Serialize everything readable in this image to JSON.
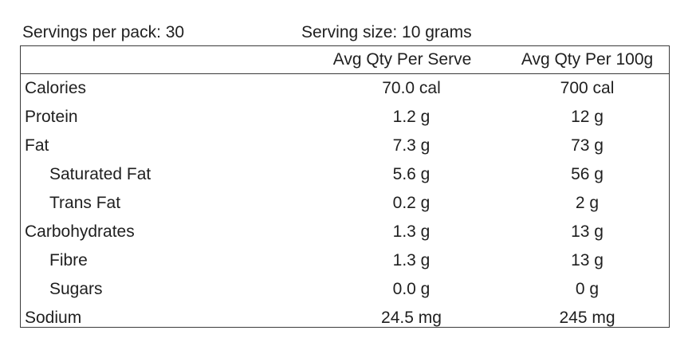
{
  "summary": {
    "servings_per_pack": "Servings per pack: 30",
    "serving_size": "Serving size: 10 grams"
  },
  "table": {
    "headers": {
      "per_serve": "Avg Qty Per Serve",
      "per_100g": "Avg Qty Per 100g"
    },
    "rows": [
      {
        "label": "Calories",
        "per_serve": "70.0 cal",
        "per_100g": "700 cal"
      },
      {
        "label": "Protein",
        "per_serve": "1.2 g",
        "per_100g": "12 g"
      },
      {
        "label": "Fat",
        "per_serve": "7.3 g",
        "per_100g": "73 g"
      },
      {
        "label": "Saturated Fat",
        "per_serve": "5.6 g",
        "per_100g": "56 g"
      },
      {
        "label": "Trans Fat",
        "per_serve": "0.2 g",
        "per_100g": "2 g"
      },
      {
        "label": "Carbohydrates",
        "per_serve": "1.3 g",
        "per_100g": "13 g"
      },
      {
        "label": "Fibre",
        "per_serve": "1.3 g",
        "per_100g": "13 g"
      },
      {
        "label": "Sugars",
        "per_serve": "0.0 g",
        "per_100g": "0 g"
      },
      {
        "label": "Sodium",
        "per_serve": "24.5 mg",
        "per_100g": "245 mg"
      }
    ]
  }
}
